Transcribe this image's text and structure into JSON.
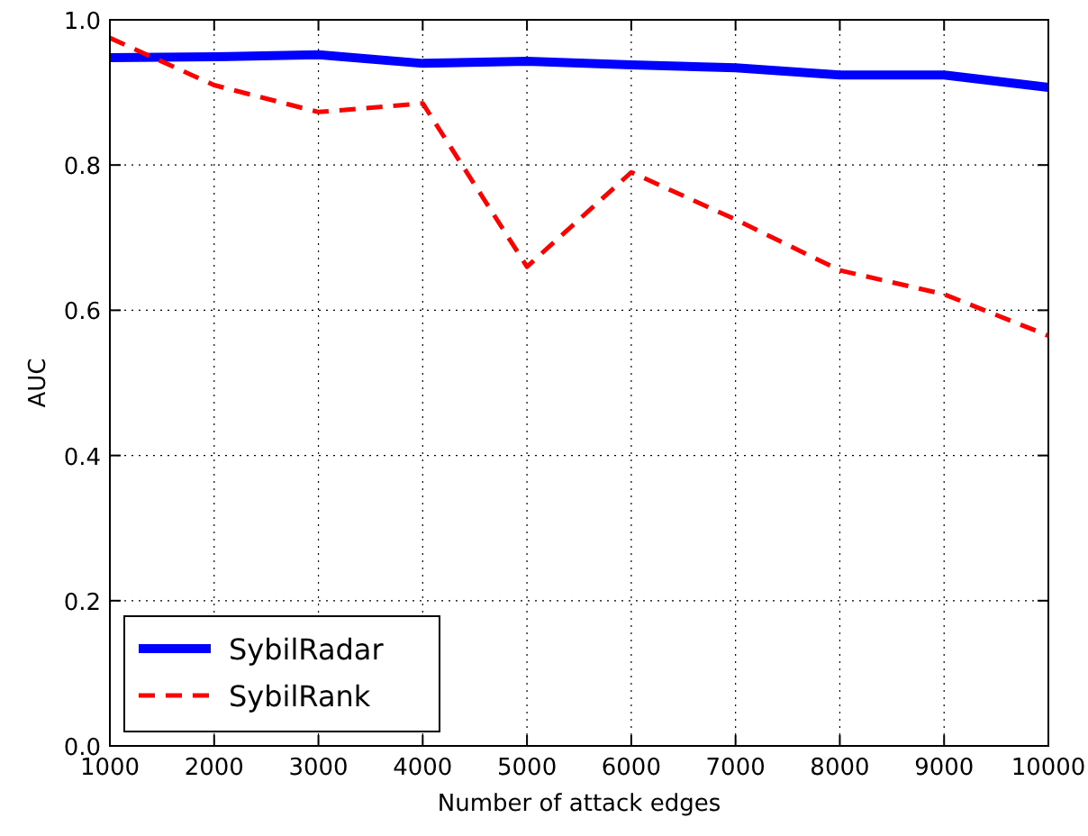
{
  "chart_data": {
    "type": "line",
    "xlabel": "Number of attack edges",
    "ylabel": "AUC",
    "x": [
      1000,
      2000,
      3000,
      4000,
      5000,
      6000,
      7000,
      8000,
      9000,
      10000
    ],
    "series": [
      {
        "name": "SybilRadar",
        "color": "#0000ff",
        "values": [
          0.948,
          0.949,
          0.952,
          0.94,
          0.943,
          0.938,
          0.934,
          0.924,
          0.924,
          0.907
        ],
        "line_style": "solid"
      },
      {
        "name": "SybilRank",
        "color": "#ff0000",
        "values": [
          0.975,
          0.91,
          0.873,
          0.885,
          0.66,
          0.79,
          0.725,
          0.655,
          0.622,
          0.565
        ],
        "line_style": "dashed"
      }
    ],
    "xlim": [
      1000,
      10000
    ],
    "xticks": [
      1000,
      2000,
      3000,
      4000,
      5000,
      6000,
      7000,
      8000,
      9000,
      10000
    ],
    "ylim": [
      0,
      1
    ],
    "yticks": [
      {
        "value": 0,
        "label": "0.0"
      },
      {
        "value": 0.2,
        "label": "0.2"
      },
      {
        "value": 0.4,
        "label": "0.4"
      },
      {
        "value": 0.6,
        "label": "0.6"
      },
      {
        "value": 0.8,
        "label": "0.8"
      },
      {
        "value": 1,
        "label": "1.0"
      }
    ],
    "grid": true,
    "legend": "bottom left",
    "marker": "none"
  }
}
